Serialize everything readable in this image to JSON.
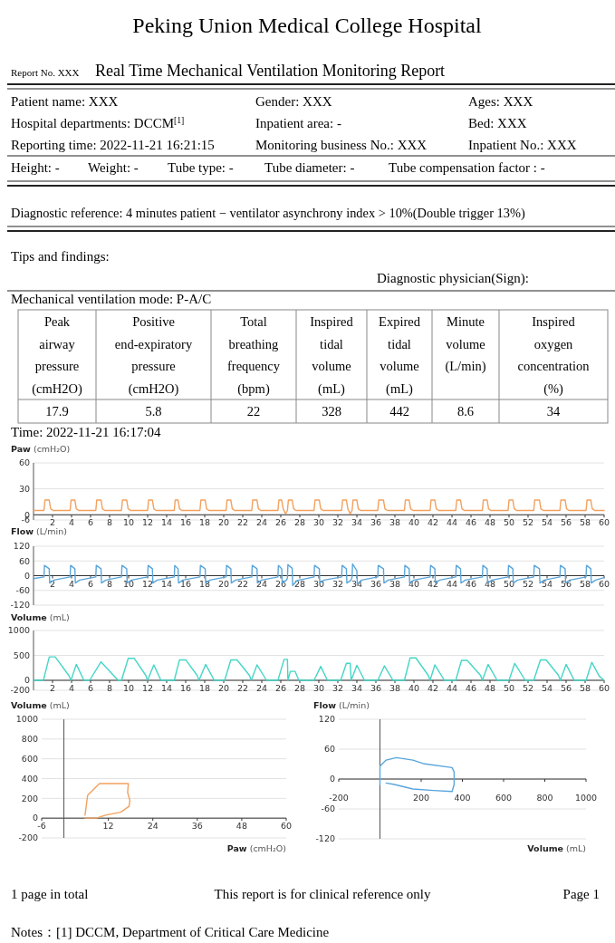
{
  "chart_data": [
    {
      "type": "other",
      "title": "Peking Union Medical College Hospital",
      "annotations": [
        "Report No. XXX",
        "Real Time Mechanical Ventilation Monitoring Report",
        "Patient name: XXX",
        "Gender: XXX",
        "Ages: XXX",
        "Hospital departments: DCCM$^{[1]}$",
        "Inpatient area: -",
        "Bed: XXX",
        "Reporting time: 2022-11-21 16:21:15",
        "Monitoring business No.: XXX",
        "Inpatient No.: XXX",
        "Height: -",
        "Weight: -",
        "Tube type: -",
        "Tube diameter: -",
        "Tube compensation factor : -",
        "Diagnostic reference: 4 minutes patient − ventilator asynchrony index > 10%(Double trigger 13%)",
        "Tips and findings:",
        "Diagnostic physician(Sign):"
      ]
    },
    {
      "type": "other",
      "title": "Mechanical ventilation mode: P-A/C",
      "categories": [
        "Peak airway pressure (cmH2O)",
        "Positive end-expiratory pressure (cmH2O)",
        "Total breathing frequency (bpm)",
        "Inspired tidal volume (mL)",
        "Expired tidal volume (mL)",
        "Minute volume (L/min)",
        "Inspired oxygen concentration (%)"
      ],
      "values": [
        17.9,
        5.8,
        22,
        328,
        442,
        8.6,
        34
      ],
      "data_labels": true,
      "annotations": [
        "Time: 2022-11-21 16:17:04"
      ]
    },
    {
      "type": "line",
      "ylabel": "Paw (cmH₂O)",
      "xlim": [
        0,
        60
      ],
      "xticks": [
        2,
        4,
        6,
        8,
        10,
        12,
        14,
        16,
        18,
        20,
        22,
        24,
        26,
        28,
        30,
        32,
        34,
        36,
        38,
        40,
        42,
        44,
        46,
        48,
        50,
        52,
        54,
        56,
        58,
        60
      ],
      "ylim": [
        -6,
        60
      ],
      "yticks": [
        -6,
        0,
        30,
        60
      ],
      "grid": "y",
      "series": [
        {
          "color": "#f2a15e",
          "x": [
            0,
            1.1,
            1.2,
            1.65,
            1.8,
            2.05,
            3.85,
            3.95,
            4.35,
            4.5,
            4.75,
            6.55,
            6.65,
            7.1,
            7.25,
            7.5,
            9.25,
            9.35,
            9.8,
            9.95,
            10.2,
            12.0,
            12.1,
            12.5,
            12.65,
            12.9,
            14.8,
            14.9,
            15.2,
            15.35,
            15.6,
            17.5,
            17.6,
            18.05,
            18.2,
            18.45,
            20.25,
            20.35,
            20.75,
            20.9,
            21.15,
            22.95,
            23.05,
            23.5,
            23.65,
            23.9,
            25.7,
            25.8,
            26.1,
            26.25,
            26.5,
            26.7,
            26.8,
            27.2,
            27.35,
            27.6,
            29.5,
            29.6,
            30.05,
            30.2,
            30.45,
            32.4,
            32.5,
            32.9,
            33.05,
            33.3,
            33.5,
            33.6,
            34.0,
            34.15,
            34.4,
            36.2,
            36.3,
            36.8,
            36.95,
            37.2,
            39.0,
            39.1,
            39.5,
            39.65,
            39.9,
            41.7,
            41.8,
            42.2,
            42.35,
            42.6,
            44.4,
            44.5,
            44.9,
            45.05,
            45.3,
            47.2,
            47.3,
            47.7,
            47.85,
            48.1,
            49.9,
            50.0,
            50.4,
            50.55,
            50.8,
            52.6,
            52.7,
            53.2,
            53.35,
            53.6,
            55.35,
            55.45,
            55.9,
            56.05,
            56.3,
            58.1,
            58.2,
            58.6,
            58.75,
            59.0,
            60
          ],
          "values": [
            5,
            5,
            17,
            17,
            7,
            5,
            5,
            17,
            17,
            7,
            5,
            5,
            17,
            17,
            7,
            5,
            5,
            17,
            17,
            7,
            5,
            5,
            17,
            17,
            7,
            5,
            5,
            17,
            17,
            7,
            5,
            5,
            17,
            17,
            7,
            5,
            5,
            17,
            17,
            7,
            5,
            5,
            17,
            17,
            7,
            5,
            5,
            17,
            17,
            7,
            1,
            5,
            17,
            17,
            7,
            5,
            5,
            17,
            17,
            7,
            5,
            5,
            17,
            17,
            7,
            1,
            5,
            17,
            17,
            7,
            5,
            5,
            17,
            17,
            7,
            5,
            5,
            17,
            17,
            7,
            5,
            5,
            17,
            17,
            7,
            5,
            5,
            17,
            17,
            7,
            5,
            5,
            17,
            17,
            7,
            5,
            5,
            17,
            17,
            7,
            5,
            5,
            17,
            17,
            7,
            5,
            5,
            17,
            17,
            7,
            5,
            5,
            17,
            17,
            7,
            5,
            5
          ]
        }
      ]
    },
    {
      "type": "line",
      "ylabel": "Flow (L/min)",
      "xlim": [
        0,
        60
      ],
      "xticks": [
        2,
        4,
        6,
        8,
        10,
        12,
        14,
        16,
        18,
        20,
        22,
        24,
        26,
        28,
        30,
        32,
        34,
        36,
        38,
        40,
        42,
        44,
        46,
        48,
        50,
        52,
        54,
        56,
        58,
        60
      ],
      "ylim": [
        -120,
        120
      ],
      "yticks": [
        -120,
        -60,
        0,
        60,
        120
      ],
      "grid": "y",
      "series": [
        {
          "color": "#5aa6dc",
          "x": [
            0,
            1.1,
            1.15,
            1.65,
            1.7,
            2.15,
            3.85,
            3.9,
            4.35,
            4.4,
            4.85,
            6.55,
            6.6,
            7.1,
            7.15,
            7.6,
            9.25,
            9.3,
            9.8,
            9.85,
            10.3,
            12.0,
            12.05,
            12.5,
            12.55,
            13.0,
            14.8,
            14.85,
            15.2,
            15.25,
            15.7,
            17.5,
            17.55,
            18.05,
            18.1,
            18.55,
            20.25,
            20.3,
            20.75,
            20.8,
            21.25,
            22.95,
            23.0,
            23.5,
            23.55,
            24.0,
            25.7,
            25.75,
            26.1,
            26.15,
            26.6,
            26.7,
            26.75,
            27.2,
            27.25,
            27.7,
            29.5,
            29.55,
            30.05,
            30.1,
            30.55,
            32.4,
            32.45,
            32.9,
            32.95,
            33.4,
            33.5,
            33.55,
            34.0,
            34.05,
            34.5,
            36.2,
            36.25,
            36.8,
            36.85,
            37.3,
            39.0,
            39.05,
            39.5,
            39.55,
            40.0,
            41.7,
            41.75,
            42.2,
            42.25,
            42.7,
            44.4,
            44.45,
            44.9,
            44.95,
            45.4,
            47.2,
            47.25,
            47.7,
            47.75,
            48.2,
            49.9,
            49.95,
            50.4,
            50.45,
            50.9,
            52.6,
            52.65,
            53.2,
            53.25,
            53.7,
            55.35,
            55.4,
            55.9,
            55.95,
            56.4,
            58.1,
            58.15,
            58.6,
            58.65,
            59.1,
            60
          ],
          "values": [
            -12,
            -5,
            42,
            28,
            -30,
            -18,
            -5,
            42,
            28,
            -30,
            -18,
            -5,
            42,
            28,
            -30,
            -18,
            -5,
            42,
            28,
            -30,
            -18,
            -5,
            42,
            28,
            -30,
            -18,
            -5,
            42,
            28,
            -30,
            -18,
            -5,
            42,
            28,
            -30,
            -18,
            -5,
            42,
            28,
            -30,
            -18,
            -5,
            42,
            28,
            -30,
            -18,
            -5,
            42,
            28,
            -30,
            -18,
            -10,
            45,
            30,
            -40,
            -20,
            -5,
            42,
            28,
            -30,
            -18,
            -5,
            42,
            28,
            -30,
            -18,
            -5,
            48,
            20,
            -35,
            -18,
            -5,
            42,
            28,
            -30,
            -18,
            -5,
            42,
            28,
            -30,
            -18,
            -5,
            42,
            28,
            -30,
            -18,
            -5,
            42,
            28,
            -30,
            -18,
            -5,
            42,
            28,
            -30,
            -18,
            -5,
            42,
            28,
            -30,
            -18,
            -5,
            42,
            28,
            -30,
            -18,
            -5,
            42,
            28,
            -30,
            -18,
            -5,
            42,
            28,
            -30,
            -18,
            -8
          ]
        }
      ]
    },
    {
      "type": "line",
      "ylabel": "Volume (mL)",
      "xlim": [
        0,
        60
      ],
      "xticks": [
        2,
        4,
        6,
        8,
        10,
        12,
        14,
        16,
        18,
        20,
        22,
        24,
        26,
        28,
        30,
        32,
        34,
        36,
        38,
        40,
        42,
        44,
        46,
        48,
        50,
        52,
        54,
        56,
        58,
        60
      ],
      "ylim": [
        -200,
        1000
      ],
      "yticks": [
        -200,
        0,
        500,
        1000
      ],
      "grid": "y",
      "series": [
        {
          "color": "#45d6c6",
          "x": [
            0,
            1.04,
            1.66,
            2.28,
            3.7,
            3.94,
            4.5,
            5.3,
            5.9,
            7.1,
            8.9,
            9.25,
            9.96,
            10.6,
            11.8,
            12.0,
            12.65,
            13.4,
            14.8,
            15.35,
            16.0,
            17.2,
            17.4,
            18.1,
            19.0,
            20.1,
            20.75,
            21.4,
            22.7,
            22.9,
            23.5,
            24.5,
            25.7,
            26.35,
            26.7,
            26.75,
            27.0,
            27.5,
            27.9,
            29.5,
            30.2,
            30.9,
            32.3,
            32.9,
            33.3,
            33.4,
            34.0,
            34.8,
            36.2,
            36.9,
            37.8,
            39.0,
            39.6,
            40.2,
            41.5,
            41.7,
            42.2,
            43.2,
            44.4,
            45.0,
            45.6,
            47.0,
            47.2,
            47.8,
            48.75,
            50.0,
            50.6,
            51.7,
            52.6,
            53.3,
            53.9,
            55.2,
            55.4,
            56.0,
            56.85,
            58.1,
            58.7,
            59.5,
            60
          ],
          "values": [
            0,
            0,
            470,
            470,
            100,
            0,
            320,
            0,
            0,
            370,
            0,
            0,
            440,
            440,
            100,
            0,
            310,
            0,
            0,
            410,
            410,
            100,
            0,
            320,
            0,
            0,
            410,
            410,
            100,
            0,
            310,
            0,
            0,
            420,
            420,
            0,
            180,
            180,
            0,
            0,
            280,
            0,
            0,
            340,
            340,
            0,
            300,
            0,
            0,
            290,
            0,
            0,
            450,
            450,
            100,
            0,
            310,
            0,
            0,
            400,
            400,
            100,
            0,
            320,
            0,
            0,
            340,
            0,
            0,
            410,
            410,
            100,
            0,
            320,
            0,
            0,
            360,
            80,
            0
          ]
        }
      ]
    },
    {
      "type": "line",
      "ylabel": "Volume (mL)",
      "xlabel": "Paw (cmH₂O)",
      "xlim": [
        -6,
        60
      ],
      "xticks": [
        -6,
        12,
        24,
        36,
        48,
        60
      ],
      "ylim": [
        -200,
        1000
      ],
      "yticks": [
        -200,
        0,
        200,
        400,
        600,
        800,
        1000
      ],
      "grid": "y",
      "series": [
        {
          "color": "#f2a15e",
          "x": [
            5.7,
            6.4,
            9.6,
            12.1,
            17.4,
            17.2,
            17.8,
            17.6,
            15.3,
            11.2,
            8.8,
            5.7
          ],
          "values": [
            30,
            230,
            350,
            350,
            350,
            260,
            180,
            120,
            60,
            30,
            0,
            0
          ]
        }
      ]
    },
    {
      "type": "line",
      "ylabel": "Flow (L/min)",
      "xlabel": "Volume (mL)",
      "xlim": [
        -200,
        1000
      ],
      "xticks": [
        -200,
        200,
        400,
        600,
        800,
        1000
      ],
      "ylim": [
        -120,
        120
      ],
      "yticks": [
        -120,
        -60,
        0,
        60,
        120
      ],
      "grid": "y",
      "series": [
        {
          "color": "#5aa6dc",
          "x": [
            0,
            0,
            30,
            80,
            160,
            210,
            350,
            360,
            360,
            350,
            260,
            160,
            70,
            30
          ],
          "values": [
            -11,
            26,
            38,
            43,
            38,
            31,
            23,
            14,
            -11,
            -25,
            -23,
            -20,
            -11,
            -8
          ]
        }
      ]
    },
    {
      "type": "other",
      "annotations": [
        "1 page in total",
        "This report is for clinical reference only",
        "Page 1",
        "Notes：[1] DCCM, Department of Critical Care Medicine"
      ]
    }
  ]
}
